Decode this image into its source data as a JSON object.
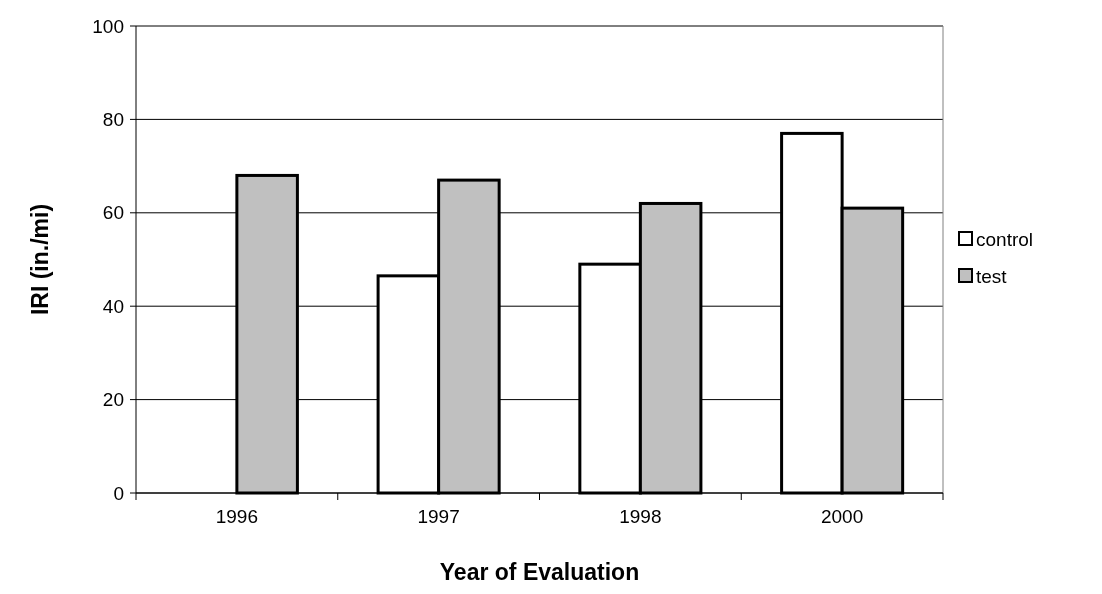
{
  "chart_data": {
    "type": "bar",
    "xlabel": "Year of Evaluation",
    "ylabel": "IRI (in./mi)",
    "categories": [
      "1996",
      "1997",
      "1998",
      "2000"
    ],
    "series": [
      {
        "name": "control",
        "color": "#ffffff",
        "values": [
          null,
          46.5,
          49,
          77
        ]
      },
      {
        "name": "test",
        "color": "#c0c0c0",
        "values": [
          68,
          67,
          62,
          61
        ]
      }
    ],
    "ylim": [
      0,
      100
    ],
    "yticks": [
      0,
      20,
      40,
      60,
      80,
      100
    ],
    "grid": "y",
    "legend": "right"
  }
}
